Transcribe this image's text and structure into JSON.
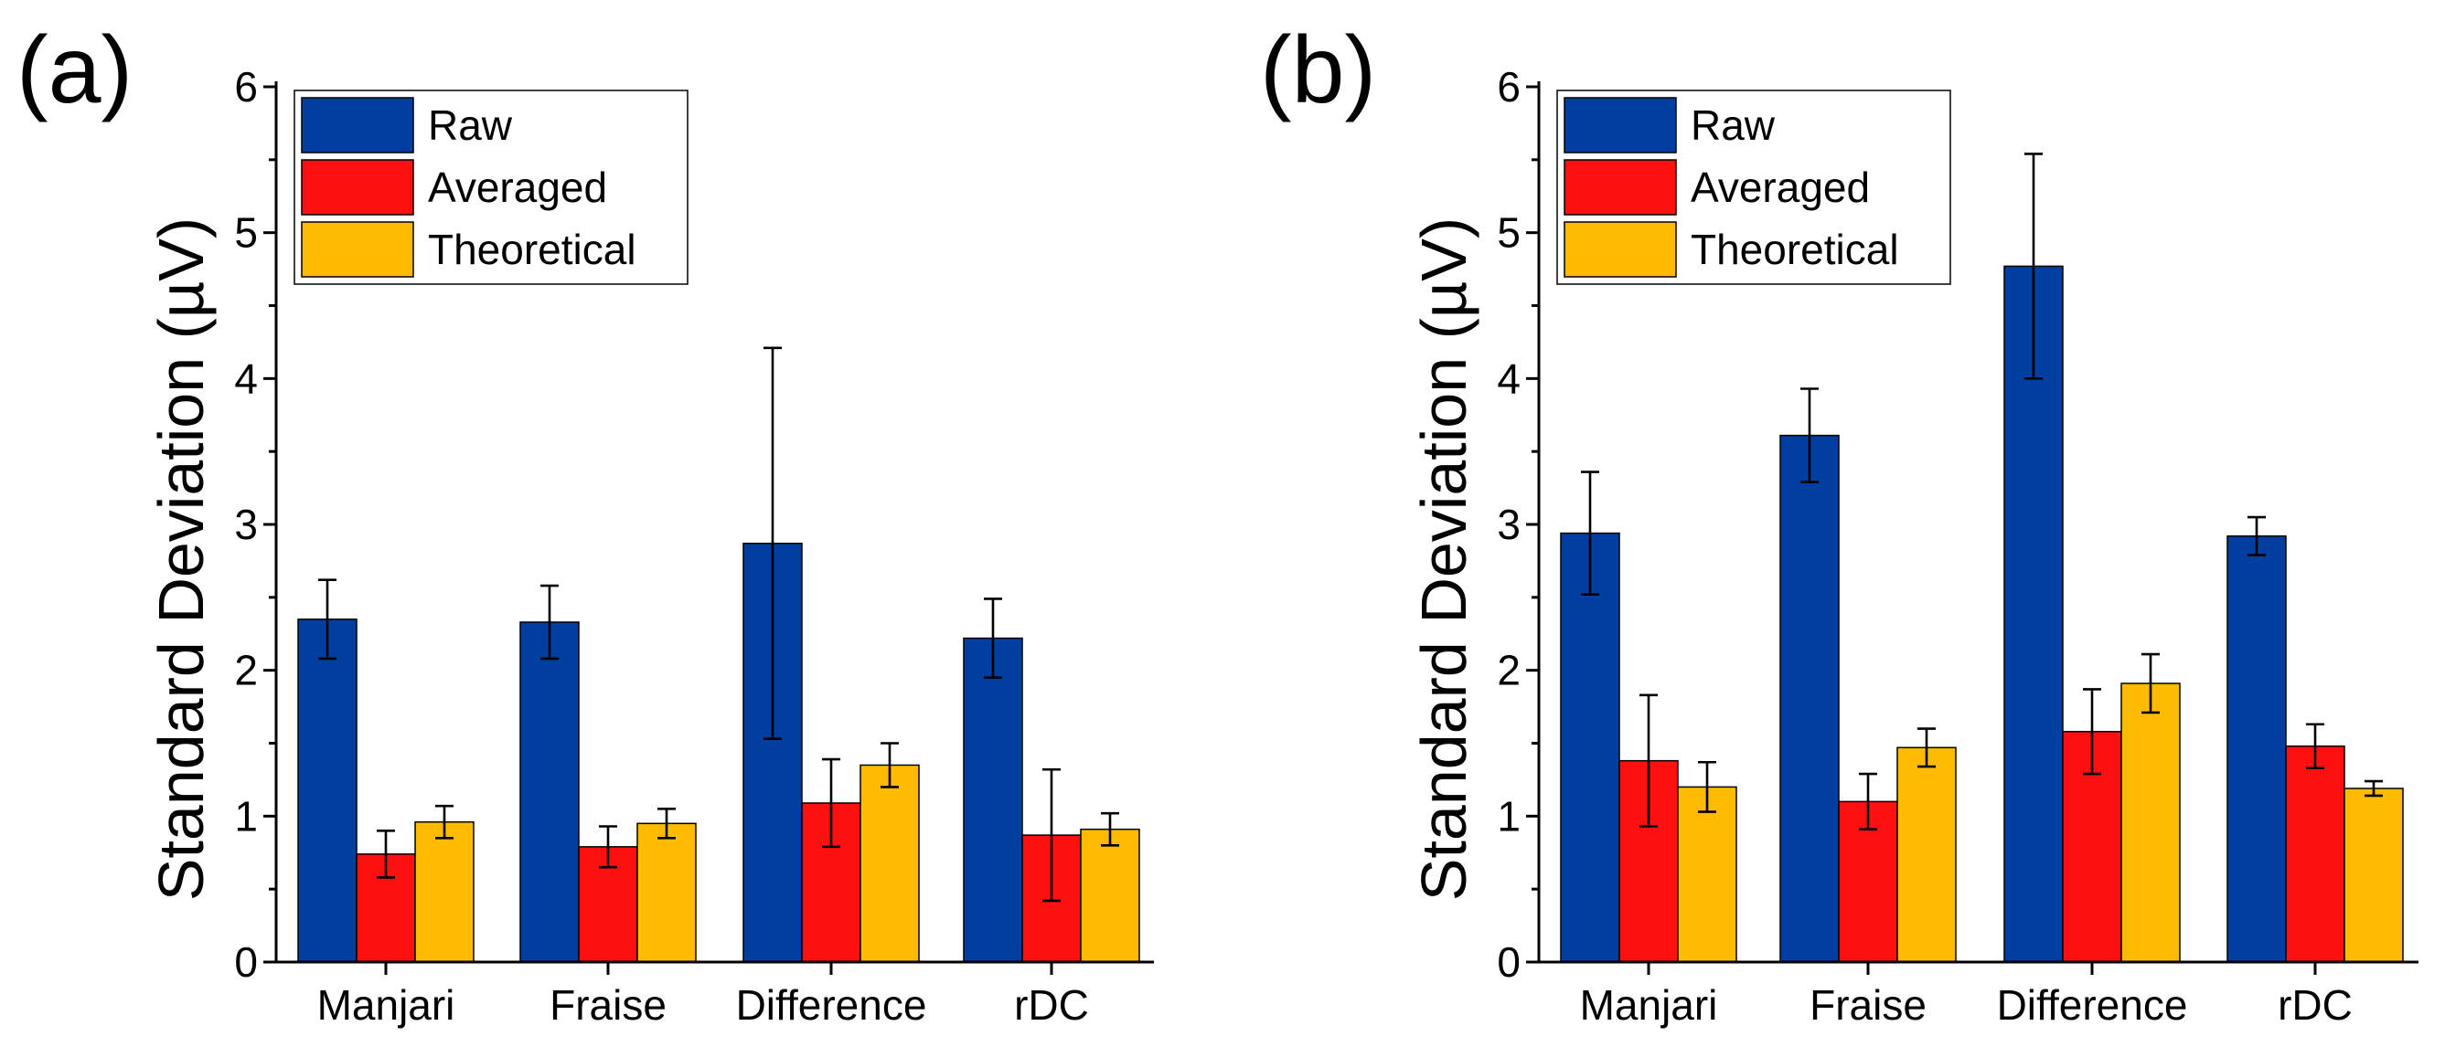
{
  "figure": {
    "panel_labels": [
      "(a)",
      "(b)"
    ]
  },
  "colors": {
    "Raw": "#003f9f",
    "Averaged": "#ff1010",
    "Theoretical": "#ffbb00"
  },
  "chart_data": [
    {
      "type": "bar",
      "panel": "(a)",
      "title": "",
      "xlabel": "",
      "ylabel": "Standard Deviation (µV)",
      "ylim": [
        0,
        6
      ],
      "yticks": [
        "0",
        "1",
        "2",
        "3",
        "4",
        "5",
        "6"
      ],
      "legend_position": "top-left",
      "categories": [
        "Manjari",
        "Fraise",
        "Difference",
        "rDC"
      ],
      "series": [
        {
          "name": "Raw",
          "values": [
            2.35,
            2.33,
            2.87,
            2.22
          ],
          "errors": [
            0.27,
            0.25,
            1.34,
            0.27
          ]
        },
        {
          "name": "Averaged",
          "values": [
            0.74,
            0.79,
            1.09,
            0.87
          ],
          "errors": [
            0.16,
            0.14,
            0.3,
            0.45
          ]
        },
        {
          "name": "Theoretical",
          "values": [
            0.96,
            0.95,
            1.35,
            0.91
          ],
          "errors": [
            0.11,
            0.1,
            0.15,
            0.11
          ]
        }
      ]
    },
    {
      "type": "bar",
      "panel": "(b)",
      "title": "",
      "xlabel": "",
      "ylabel": "Standard Deviation (µV)",
      "ylim": [
        0,
        6
      ],
      "yticks": [
        "0",
        "1",
        "2",
        "3",
        "4",
        "5",
        "6"
      ],
      "legend_position": "top-left",
      "categories": [
        "Manjari",
        "Fraise",
        "Difference",
        "rDC"
      ],
      "series": [
        {
          "name": "Raw",
          "values": [
            2.94,
            3.61,
            4.77,
            2.92
          ],
          "errors": [
            0.42,
            0.32,
            0.77,
            0.13
          ]
        },
        {
          "name": "Averaged",
          "values": [
            1.38,
            1.1,
            1.58,
            1.48
          ],
          "errors": [
            0.45,
            0.19,
            0.29,
            0.15
          ]
        },
        {
          "name": "Theoretical",
          "values": [
            1.2,
            1.47,
            1.91,
            1.19
          ],
          "errors": [
            0.17,
            0.13,
            0.2,
            0.05
          ]
        }
      ]
    }
  ]
}
